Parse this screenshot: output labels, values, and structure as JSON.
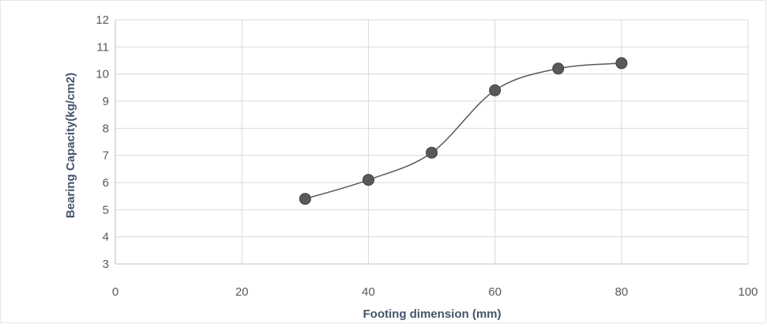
{
  "chart_data": {
    "type": "scatter",
    "title": "",
    "xlabel": "Footing dimension (mm)",
    "ylabel": "Bearing Capacity(kg/cm2)",
    "xlim": [
      0,
      100
    ],
    "ylim": [
      3,
      12
    ],
    "xticks": [
      0,
      20,
      40,
      60,
      80,
      100
    ],
    "yticks": [
      3,
      4,
      5,
      6,
      7,
      8,
      9,
      10,
      11,
      12
    ],
    "grid": true,
    "smooth_line": true,
    "legend": "none",
    "series": [
      {
        "x": [
          30,
          40,
          50,
          60,
          70,
          80
        ],
        "y": [
          5.4,
          6.1,
          7.1,
          9.4,
          10.2,
          10.4
        ],
        "color": "#595959"
      }
    ],
    "colors": {
      "grid": "#d9d9d9",
      "axis": "#bfbfbf",
      "marker": "#595959",
      "title_text": "#44546a",
      "tick_text": "#595959"
    }
  }
}
